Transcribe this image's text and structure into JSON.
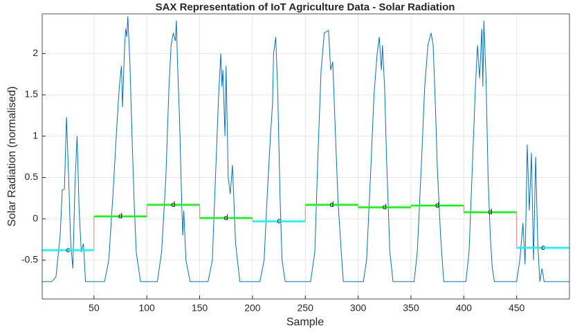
{
  "chart_data": {
    "type": "line",
    "title": "SAX Representation of IoT Agriculture Data - Solar Radiation",
    "xlabel": "Sample",
    "ylabel": "Solar Radiation (normalised)",
    "xlim": [
      1,
      500
    ],
    "ylim": [
      -0.97,
      2.48
    ],
    "xticks": [
      50,
      100,
      150,
      200,
      250,
      300,
      350,
      400,
      450
    ],
    "yticks": [
      -0.5,
      0,
      0.5,
      1,
      1.5,
      2
    ],
    "grid": true,
    "line": {
      "color": "#0072bd",
      "x": [
        1,
        10,
        14,
        18,
        20,
        22,
        24,
        26,
        28,
        30,
        32,
        34,
        36,
        38,
        40,
        42,
        60,
        64,
        68,
        72,
        74,
        76,
        77,
        79,
        80,
        81,
        82,
        84,
        86,
        88,
        90,
        94,
        110,
        114,
        118,
        121,
        123,
        125,
        127,
        128,
        129,
        131,
        133,
        134,
        135,
        137,
        141,
        158,
        162,
        165,
        168,
        170,
        171,
        172,
        174,
        175,
        177,
        179,
        181,
        184,
        188,
        207,
        211,
        214,
        217,
        219,
        220,
        222,
        224,
        226,
        228,
        231,
        255,
        259,
        262,
        265,
        268,
        272,
        274,
        276,
        278,
        281,
        284,
        286,
        305,
        308,
        312,
        315,
        318,
        320,
        322,
        323,
        325,
        327,
        330,
        333,
        353,
        356,
        360,
        363,
        366,
        369,
        371,
        373,
        375,
        378,
        381,
        402,
        405,
        408,
        411,
        413,
        415,
        417,
        418,
        419,
        421,
        423,
        425,
        427,
        429,
        450,
        453,
        456,
        458,
        460,
        462,
        464,
        466,
        468,
        470,
        472,
        474,
        476,
        500
      ],
      "values": [
        -0.76,
        -0.76,
        -0.7,
        -0.2,
        0.35,
        0.36,
        1.23,
        0.5,
        -0.3,
        -0.6,
        0.4,
        1.0,
        0.1,
        -0.4,
        -0.3,
        -0.76,
        -0.76,
        -0.5,
        0.3,
        1.2,
        1.6,
        1.85,
        1.35,
        2.1,
        2.3,
        2.2,
        2.45,
        1.9,
        1.0,
        0.2,
        -0.4,
        -0.76,
        -0.76,
        -0.4,
        0.5,
        1.6,
        2.1,
        2.25,
        2.15,
        2.4,
        1.9,
        1.2,
        0.2,
        -0.2,
        0.1,
        -0.5,
        -0.76,
        -0.76,
        -0.5,
        0.5,
        1.5,
        2.0,
        1.6,
        1.8,
        1.0,
        1.85,
        0.5,
        0.3,
        0.65,
        -0.3,
        -0.76,
        -0.76,
        -0.5,
        0.3,
        1.0,
        1.4,
        2.0,
        2.2,
        1.5,
        0.3,
        -0.5,
        -0.76,
        -0.76,
        -0.4,
        0.8,
        1.8,
        2.25,
        2.28,
        1.8,
        1.9,
        1.2,
        0.2,
        -0.4,
        -0.76,
        -0.76,
        -0.5,
        0.6,
        1.5,
        2.0,
        2.2,
        1.8,
        2.1,
        1.6,
        0.7,
        -0.4,
        -0.76,
        -0.76,
        -0.4,
        0.7,
        1.6,
        2.1,
        2.25,
        2.1,
        1.4,
        0.6,
        -0.2,
        -0.76,
        -0.76,
        -0.4,
        0.6,
        1.6,
        2.1,
        1.7,
        2.3,
        1.6,
        2.4,
        1.7,
        0.5,
        -0.2,
        -0.6,
        -0.76,
        -0.76,
        -0.5,
        -0.05,
        -0.55,
        0.9,
        0.1,
        0.8,
        -0.5,
        0.75,
        -0.3,
        -0.76,
        -0.6,
        -0.76,
        -0.76
      ]
    },
    "sax": {
      "breaks": [
        1,
        50,
        100,
        150,
        200,
        250,
        300,
        350,
        400,
        450,
        500
      ],
      "values": [
        -0.38,
        0.03,
        0.17,
        0.01,
        -0.03,
        0.17,
        0.14,
        0.16,
        0.08,
        -0.35
      ],
      "symbols": [
        "c",
        "d",
        "d",
        "d",
        "c",
        "d",
        "d",
        "d",
        "d",
        "c"
      ],
      "symbol_colors": {
        "c": "#00ffff",
        "d": "#00ff00"
      },
      "connector_color": "#f08080"
    }
  }
}
